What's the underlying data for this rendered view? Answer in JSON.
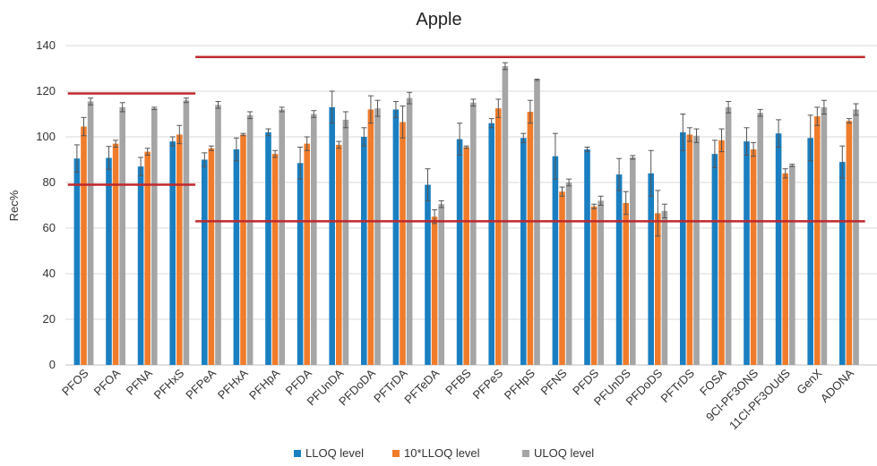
{
  "chart_data": {
    "type": "bar",
    "title": "Apple",
    "xlabel": "",
    "ylabel": "Rec%",
    "ylim": [
      0,
      140
    ],
    "yticks": [
      0,
      20,
      40,
      60,
      80,
      100,
      120,
      140
    ],
    "grid": true,
    "legend_position": "bottom",
    "categories": [
      "PFOS",
      "PFOA",
      "PFNA",
      "PFHxS",
      "PFPeA",
      "PFHxA",
      "PFHpA",
      "PFDA",
      "PFUnDA",
      "PFDoDA",
      "PFTrDA",
      "PFTeDA",
      "PFBS",
      "PFPeS",
      "PFHpS",
      "PFNS",
      "PFDS",
      "PFUnDS",
      "PFDoDS",
      "PFTrDS",
      "FOSA",
      "9Cl-PF3ONS",
      "11Cl-PF3OUdS",
      "GenX",
      "ADONA"
    ],
    "series": [
      {
        "name": "LLOQ level",
        "color": "#1a7fc1",
        "values": [
          90.5,
          90.8,
          87,
          98,
          90,
          94.5,
          102,
          88.5,
          113,
          100,
          112,
          79,
          99,
          106,
          99.5,
          91.5,
          94.5,
          83.5,
          84,
          102,
          92.5,
          98,
          101.5,
          99.5,
          89
        ],
        "errors": [
          6,
          5,
          4,
          2,
          3,
          5,
          1.5,
          7,
          7,
          4,
          3.5,
          7,
          7,
          2,
          2,
          10,
          1,
          7,
          10,
          8,
          6,
          6,
          6,
          10,
          7
        ]
      },
      {
        "name": "10*LLOQ level",
        "color": "#f07c2b",
        "values": [
          104.5,
          97,
          93.5,
          101,
          95,
          101,
          92.5,
          97,
          96.5,
          112,
          106.5,
          65,
          95.5,
          112.5,
          111,
          76,
          69.5,
          71,
          66.5,
          101,
          98.5,
          94.5,
          84,
          109,
          107
        ],
        "errors": [
          4,
          1.5,
          1.5,
          4,
          1,
          0.5,
          1.5,
          3,
          1.5,
          6,
          7,
          3,
          0.5,
          4,
          5,
          2,
          1,
          5,
          10,
          3,
          5,
          3,
          2,
          4,
          1
        ]
      },
      {
        "name": "ULOQ level",
        "color": "#a5a5a5",
        "values": [
          115.5,
          113,
          112.5,
          116,
          114,
          109.5,
          112,
          110,
          107.5,
          112.5,
          117,
          70.5,
          115,
          131,
          125,
          80,
          72,
          91,
          67.5,
          100.5,
          113,
          110.5,
          87.5,
          113,
          112
        ],
        "errors": [
          1.5,
          2,
          0.5,
          1,
          1.5,
          1.5,
          1,
          1.5,
          3.5,
          3.5,
          2.5,
          1.5,
          1.5,
          1.5,
          0.3,
          1.5,
          2,
          0.8,
          3,
          3,
          2.5,
          1.5,
          0.5,
          3,
          2.5
        ]
      }
    ],
    "reference_lines": [
      {
        "value": 119,
        "categories_from": "PFOS",
        "categories_to": "PFHxS",
        "color": "#c0282d"
      },
      {
        "value": 79,
        "categories_from": "PFOS",
        "categories_to": "PFHxS",
        "color": "#c0282d"
      },
      {
        "value": 135,
        "categories_from": "PFPeA",
        "categories_to": "ADONA",
        "color": "#c0282d"
      },
      {
        "value": 63,
        "categories_from": "PFPeA",
        "categories_to": "ADONA",
        "color": "#c0282d"
      }
    ]
  }
}
